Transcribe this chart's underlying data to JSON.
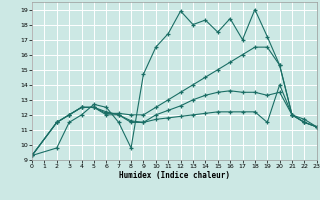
{
  "xlabel": "Humidex (Indice chaleur)",
  "bg_color": "#cce8e4",
  "grid_color": "#ffffff",
  "line_color": "#1a6e65",
  "xlim": [
    0,
    23
  ],
  "ylim": [
    9,
    19.5
  ],
  "xticks": [
    0,
    1,
    2,
    3,
    4,
    5,
    6,
    7,
    8,
    9,
    10,
    11,
    12,
    13,
    14,
    15,
    16,
    17,
    18,
    19,
    20,
    21,
    22,
    23
  ],
  "yticks": [
    9,
    10,
    11,
    12,
    13,
    14,
    15,
    16,
    17,
    18,
    19
  ],
  "curve1_x": [
    0,
    2,
    3,
    4,
    5,
    6,
    7,
    8,
    9,
    10,
    11,
    12,
    13,
    14,
    15,
    16,
    17,
    18,
    19,
    20,
    21,
    22,
    23
  ],
  "curve1_y": [
    9.3,
    9.8,
    11.5,
    12.0,
    12.7,
    12.5,
    11.5,
    9.8,
    14.7,
    16.5,
    17.4,
    18.9,
    18.0,
    18.3,
    17.5,
    18.4,
    17.0,
    19.0,
    17.2,
    15.3,
    12.0,
    11.7,
    11.2
  ],
  "curve2_x": [
    0,
    2,
    3,
    4,
    5,
    6,
    7,
    8,
    9,
    10,
    11,
    12,
    13,
    14,
    15,
    16,
    17,
    18,
    19,
    20,
    21,
    22,
    23
  ],
  "curve2_y": [
    9.3,
    11.5,
    12.0,
    12.5,
    12.5,
    12.2,
    12.0,
    11.6,
    11.5,
    11.7,
    11.8,
    11.9,
    12.0,
    12.1,
    12.2,
    12.2,
    12.2,
    12.2,
    11.5,
    14.0,
    12.0,
    11.5,
    11.2
  ],
  "curve3_x": [
    0,
    2,
    3,
    4,
    5,
    6,
    7,
    8,
    9,
    10,
    11,
    12,
    13,
    14,
    15,
    16,
    17,
    18,
    19,
    20,
    21,
    22,
    23
  ],
  "curve3_y": [
    9.3,
    11.5,
    12.0,
    12.5,
    12.5,
    12.0,
    12.0,
    11.5,
    11.5,
    12.0,
    12.3,
    12.6,
    13.0,
    13.3,
    13.5,
    13.6,
    13.5,
    13.5,
    13.3,
    13.5,
    12.0,
    11.5,
    11.2
  ],
  "curve4_x": [
    0,
    2,
    3,
    4,
    5,
    6,
    7,
    8,
    9,
    10,
    11,
    12,
    13,
    14,
    15,
    16,
    17,
    18,
    19,
    20,
    21,
    22,
    23
  ],
  "curve4_y": [
    9.3,
    11.5,
    12.0,
    12.5,
    12.5,
    12.1,
    12.1,
    12.0,
    12.0,
    12.5,
    13.0,
    13.5,
    14.0,
    14.5,
    15.0,
    15.5,
    16.0,
    16.5,
    16.5,
    15.3,
    12.0,
    11.5,
    11.2
  ]
}
